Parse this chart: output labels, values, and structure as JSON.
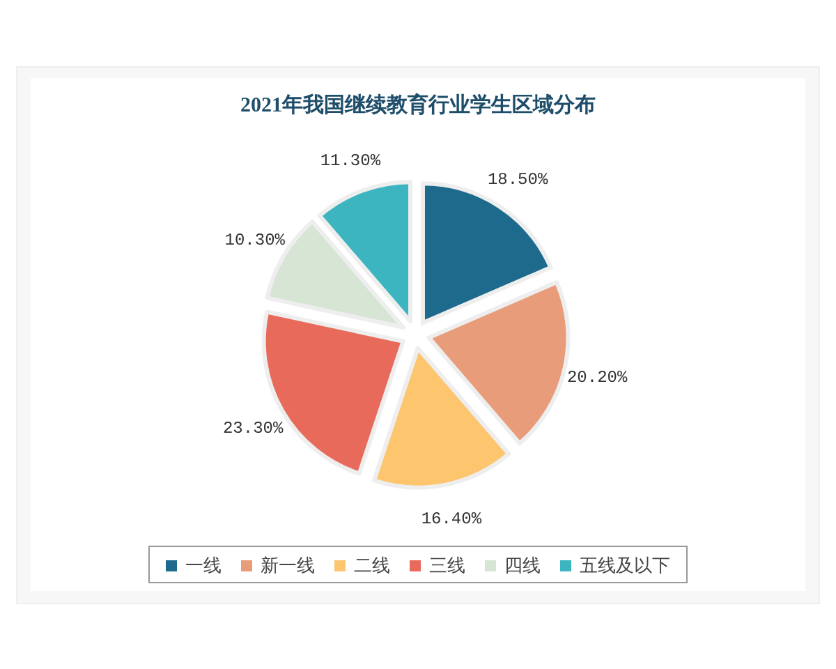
{
  "chart_data": {
    "type": "pie",
    "title": "2021年我国继续教育行业学生区域分布",
    "categories": [
      "一线",
      "新一线",
      "二线",
      "三线",
      "四线",
      "五线及以下"
    ],
    "values": [
      18.5,
      20.2,
      16.4,
      23.3,
      10.3,
      11.3
    ],
    "value_labels": [
      "18.50%",
      "20.20%",
      "16.40%",
      "23.30%",
      "10.30%",
      "11.30%"
    ],
    "colors": [
      "#1d6a8c",
      "#e89c7a",
      "#fec56f",
      "#e86a5b",
      "#d6e5d4",
      "#3db5c1"
    ],
    "legend": "bottom"
  }
}
